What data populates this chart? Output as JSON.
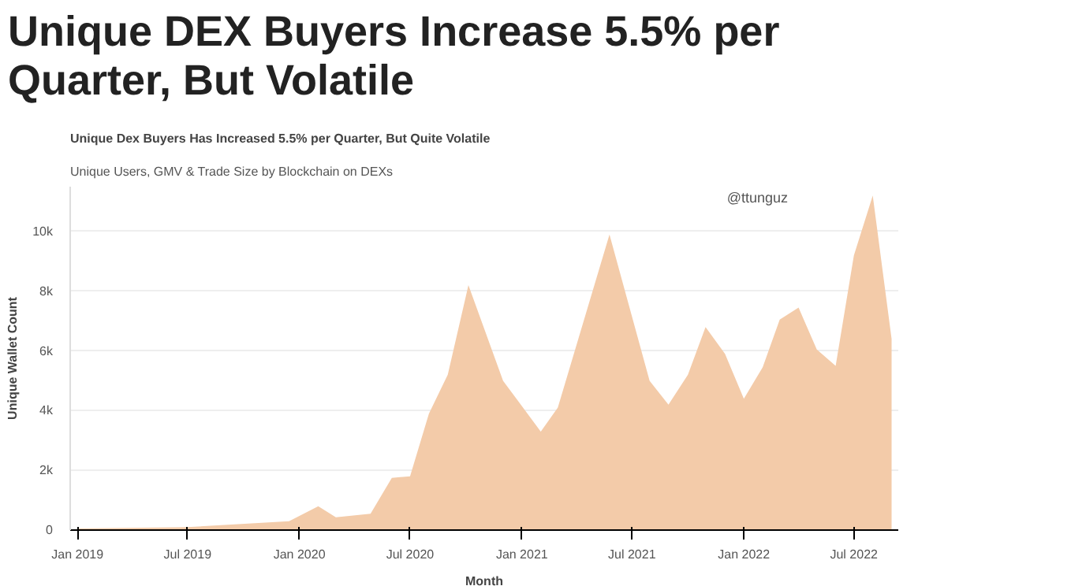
{
  "chart_data": {
    "type": "area",
    "title": "Unique DEX Buyers Increase 5.5% per Quarter, But Volatile",
    "subtitle": "Unique Dex Buyers Has Increased 5.5% per Quarter, But Quite Volatile",
    "annotations": [
      "Unique Users, GMV & Trade Size by Blockchain on DEXs",
      "@ttunguz"
    ],
    "xlabel": "Month",
    "ylabel": "Unique Wallet Count",
    "x": [
      "2019-01-01",
      "2019-07-01",
      "2019-12-15",
      "2020-02-01",
      "2020-03-01",
      "2020-04-27",
      "2020-06-01",
      "2020-07-01",
      "2020-08-01",
      "2020-09-01",
      "2020-10-05",
      "2020-12-01",
      "2021-02-01",
      "2021-03-01",
      "2021-05-25",
      "2021-07-30",
      "2021-08-30",
      "2021-10-01",
      "2021-10-30",
      "2021-12-01",
      "2022-01-01",
      "2022-02-01",
      "2022-03-01",
      "2022-04-01",
      "2022-05-01",
      "2022-06-01",
      "2022-07-01",
      "2022-08-01",
      "2022-09-01"
    ],
    "series": [
      {
        "color": "#f3cba9",
        "values": [
          50,
          100,
          300,
          800,
          430,
          550,
          1750,
          1800,
          3900,
          5200,
          8200,
          5000,
          3300,
          4100,
          9900,
          5000,
          4200,
          5200,
          6800,
          5900,
          4400,
          5450,
          7050,
          7450,
          6050,
          5500,
          9200,
          11200,
          6400
        ]
      }
    ],
    "xlim": [
      "2018-12-20",
      "2022-09-12"
    ],
    "xticks": [
      {
        "value": "2019-01-01",
        "label": "Jan 2019"
      },
      {
        "value": "2019-07-01",
        "label": "Jul 2019"
      },
      {
        "value": "2020-01-01",
        "label": "Jan 2020"
      },
      {
        "value": "2020-07-01",
        "label": "Jul 2020"
      },
      {
        "value": "2021-01-01",
        "label": "Jan 2021"
      },
      {
        "value": "2021-07-01",
        "label": "Jul 2021"
      },
      {
        "value": "2022-01-01",
        "label": "Jan 2022"
      },
      {
        "value": "2022-07-01",
        "label": "Jul 2022"
      }
    ],
    "ylim": [
      0,
      11500
    ],
    "yticks": [
      0,
      {
        "value": 2000,
        "label": "2k"
      },
      {
        "value": 4000,
        "label": "4k"
      },
      {
        "value": 6000,
        "label": "6k"
      },
      {
        "value": 8000,
        "label": "8k"
      },
      {
        "value": 10000,
        "label": "10k"
      }
    ],
    "grid": "y"
  }
}
